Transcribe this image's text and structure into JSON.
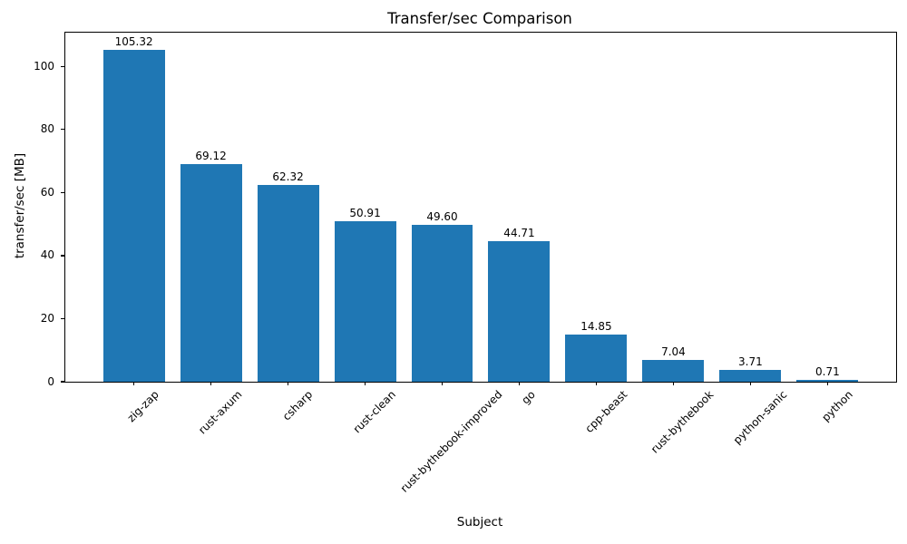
{
  "chart_data": {
    "type": "bar",
    "title": "Transfer/sec Comparison",
    "xlabel": "Subject",
    "ylabel": "transfer/sec [MB]",
    "categories": [
      "zig-zap",
      "rust-axum",
      "csharp",
      "rust-clean",
      "rust-bythebook-improved",
      "go",
      "cpp-beast",
      "rust-bythebook",
      "python-sanic",
      "python"
    ],
    "values": [
      105.32,
      69.12,
      62.32,
      50.91,
      49.6,
      44.71,
      14.85,
      7.04,
      3.71,
      0.71
    ],
    "value_labels": [
      "105.32",
      "69.12",
      "62.32",
      "50.91",
      "49.60",
      "44.71",
      "14.85",
      "7.04",
      "3.71",
      "0.71"
    ],
    "yticks": [
      0,
      20,
      40,
      60,
      80,
      100
    ],
    "ylim": [
      0,
      110.7
    ],
    "xtick_rotation_deg": 45,
    "bar_color": "#1f77b4",
    "grid": false,
    "legend_position": "none"
  }
}
